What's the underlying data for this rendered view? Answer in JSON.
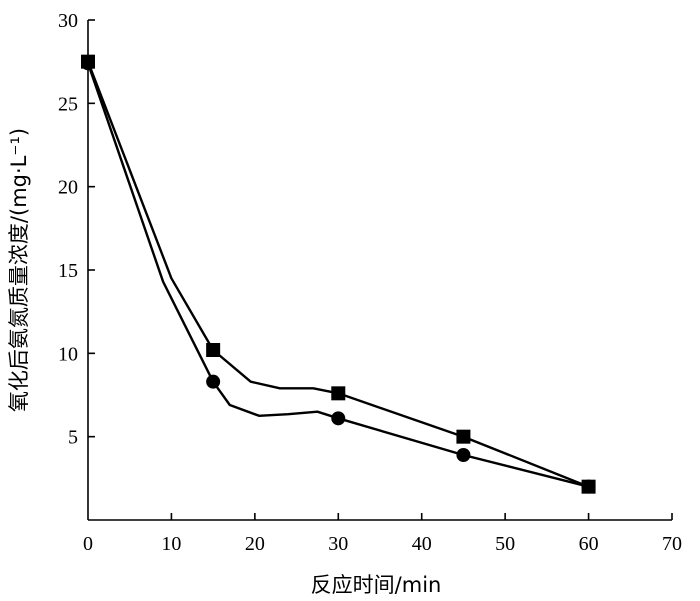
{
  "chart_data": {
    "type": "line",
    "title": "",
    "xlabel": "反应时间/min",
    "ylabel": "氧化后氨氮质量浓度/(mg·L⁻¹)",
    "xlim": [
      0,
      70
    ],
    "ylim": [
      0,
      30
    ],
    "x_ticks": [
      "0",
      "10",
      "20",
      "30",
      "40",
      "50",
      "60",
      "70"
    ],
    "y_ticks": [
      "5",
      "10",
      "15",
      "20",
      "25",
      "30"
    ],
    "grid": false,
    "series": [
      {
        "marker": "square",
        "markers": [
          [
            0,
            27.5
          ],
          [
            15,
            10.2
          ],
          [
            30,
            7.6
          ],
          [
            45,
            5.0
          ],
          [
            60,
            2.0
          ]
        ],
        "line": [
          [
            0,
            27.5
          ],
          [
            10,
            14.5
          ],
          [
            15,
            10.2
          ],
          [
            19.5,
            8.3
          ],
          [
            23,
            7.9
          ],
          [
            27,
            7.9
          ],
          [
            30,
            7.6
          ],
          [
            45,
            5.0
          ],
          [
            60,
            2.0
          ]
        ],
        "color": "#000000"
      },
      {
        "marker": "circle",
        "markers": [
          [
            0,
            27.4
          ],
          [
            15,
            8.3
          ],
          [
            30,
            6.1
          ],
          [
            45,
            3.9
          ],
          [
            60,
            2.0
          ]
        ],
        "line": [
          [
            0,
            27.4
          ],
          [
            9,
            14.3
          ],
          [
            15,
            8.3
          ],
          [
            17,
            6.9
          ],
          [
            20.5,
            6.25
          ],
          [
            24,
            6.35
          ],
          [
            27.5,
            6.5
          ],
          [
            30,
            6.1
          ],
          [
            45,
            3.9
          ],
          [
            60,
            2.0
          ]
        ],
        "color": "#000000"
      }
    ]
  }
}
